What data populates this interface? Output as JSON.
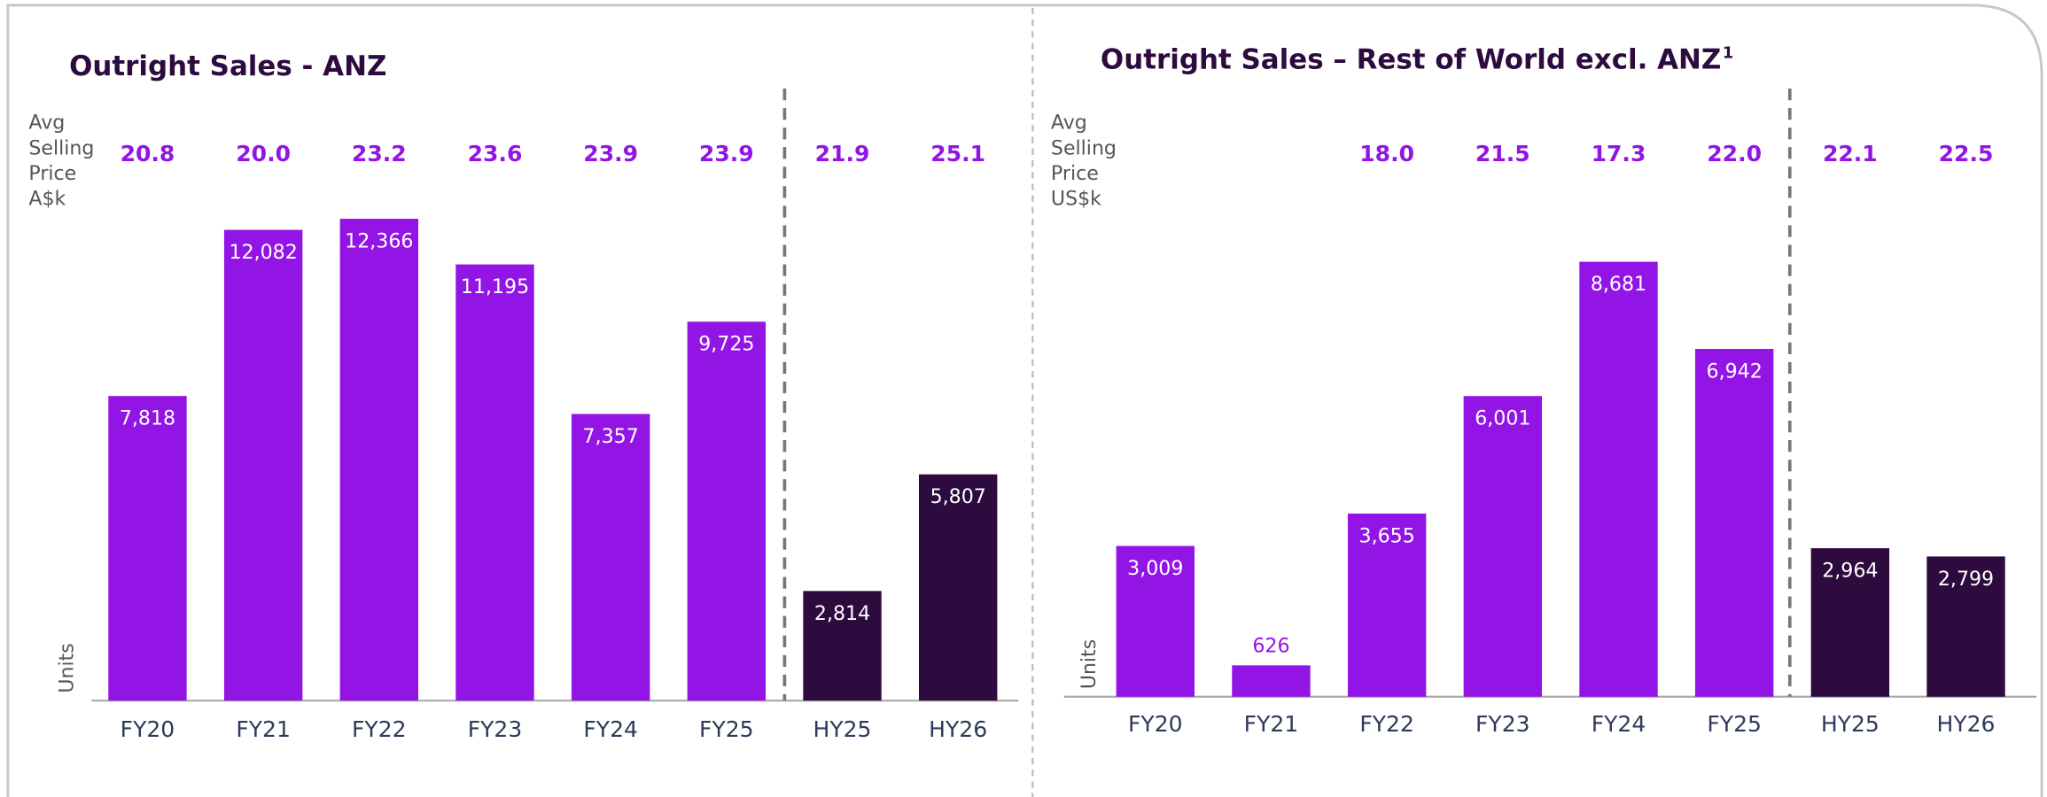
{
  "chart_data": [
    {
      "type": "bar",
      "title": "Outright Sales - ANZ",
      "price_caption": [
        "Avg",
        "Selling",
        "Price",
        "A$k"
      ],
      "avg_price_values": [
        20.8,
        20.0,
        23.2,
        23.6,
        23.9,
        23.9,
        21.9,
        25.1
      ],
      "avg_price_labels": [
        "20.8",
        "20.0",
        "23.2",
        "23.6",
        "23.9",
        "23.9",
        "21.9",
        "25.1"
      ],
      "y_label": "Units",
      "categories": [
        "FY20",
        "FY21",
        "FY22",
        "FY23",
        "FY24",
        "FY25",
        "HY25",
        "HY26"
      ],
      "values": [
        7818,
        12082,
        12366,
        11195,
        7357,
        9725,
        2814,
        5807
      ],
      "value_labels": [
        "7,818",
        "12,082",
        "12,366",
        "11,195",
        "7,357",
        "9,725",
        "2,814",
        "5,807"
      ],
      "colors": [
        "#9315e6",
        "#9315e6",
        "#9315e6",
        "#9315e6",
        "#9315e6",
        "#9315e6",
        "#2e0b3f",
        "#2e0b3f"
      ]
    },
    {
      "type": "bar",
      "title": "Outright Sales – Rest of World excl. ANZ",
      "title_footnote": "1",
      "price_caption": [
        "Avg",
        "Selling",
        "Price",
        "US$k"
      ],
      "avg_price_values": [
        null,
        null,
        18.0,
        21.5,
        17.3,
        22.0,
        22.1,
        22.5
      ],
      "avg_price_labels": [
        null,
        null,
        "18.0",
        "21.5",
        "17.3",
        "22.0",
        "22.1",
        "22.5"
      ],
      "y_label": "Units",
      "categories": [
        "FY20",
        "FY21",
        "FY22",
        "FY23",
        "FY24",
        "FY25",
        "HY25",
        "HY26"
      ],
      "values": [
        3009,
        626,
        3655,
        6001,
        8681,
        6942,
        2964,
        2799
      ],
      "value_labels": [
        "3,009",
        "626",
        "3,655",
        "6,001",
        "8,681",
        "6,942",
        "2,964",
        "2,799"
      ],
      "colors": [
        "#9315e6",
        "#9315e6",
        "#9315e6",
        "#9315e6",
        "#9315e6",
        "#9315e6",
        "#2e0b3f",
        "#2e0b3f"
      ]
    }
  ]
}
